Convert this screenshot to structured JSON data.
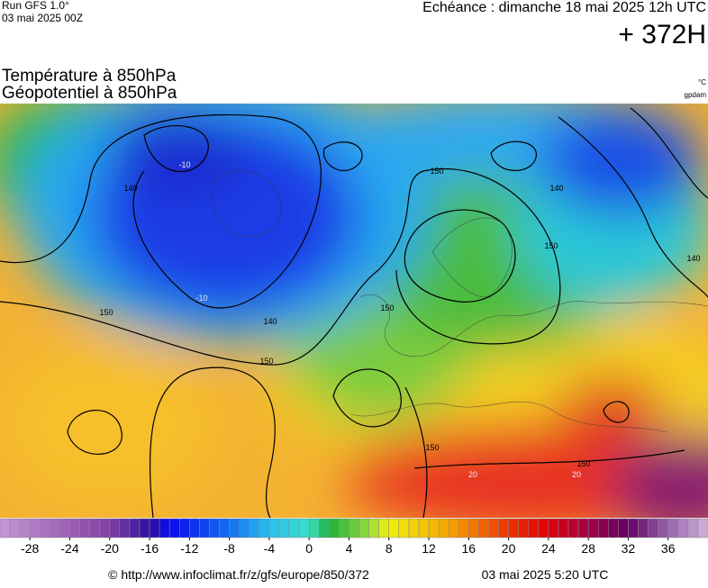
{
  "header": {
    "run": "Run GFS 1.0°",
    "date": "03 mai 2025 00Z",
    "echeance": "Echéance : dimanche 18 mai 2025 12h UTC",
    "lead": "+ 372H"
  },
  "title": {
    "line1": "Température à 850hPa",
    "line2": "Géopotentiel à 850hPa"
  },
  "units": {
    "temp": "°C",
    "geo": "gpdam"
  },
  "contour_labels": [
    "150",
    "140",
    "150",
    "150",
    "140",
    "150",
    "150",
    "150",
    "140",
    "140",
    "150",
    "-10",
    "-10",
    "20",
    "20"
  ],
  "colorbar": {
    "range": [
      -31,
      40
    ],
    "ticks": [
      -28,
      -24,
      -20,
      -16,
      -12,
      -8,
      -4,
      0,
      4,
      8,
      12,
      16,
      20,
      24,
      28,
      32,
      36
    ]
  },
  "footer": {
    "url": "© http://www.infoclimat.fr/z/gfs/europe/850/372",
    "timestamp": "03 mai 2025  5:20 UTC"
  }
}
